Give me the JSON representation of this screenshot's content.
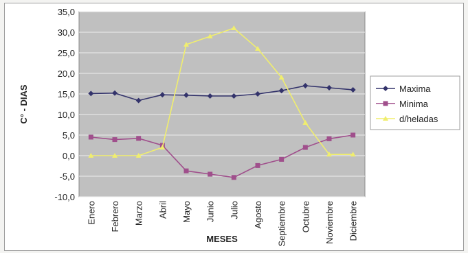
{
  "chart_data": {
    "type": "line",
    "title": "",
    "xlabel": "MESES",
    "ylabel": "C° - DIAS",
    "categories": [
      "Enero",
      "Febrero",
      "Marzo",
      "Abril",
      "Mayo",
      "Junio",
      "Julio",
      "Agosto",
      "Septiembre",
      "Octubre",
      "Noviembre",
      "Diciembre"
    ],
    "ylim": [
      -10,
      35
    ],
    "yticks": [
      "-10,0",
      "-5,0",
      "0,0",
      "5,0",
      "10,0",
      "15,0",
      "20,0",
      "25,0",
      "30,0",
      "35,0"
    ],
    "ytick_values": [
      -10,
      -5,
      0,
      5,
      10,
      15,
      20,
      25,
      30,
      35
    ],
    "grid": true,
    "legend_position": "right",
    "plot_background": "#c0c0c0",
    "series": [
      {
        "name": "Maxima",
        "color": "#33336b",
        "marker": "diamond",
        "values": [
          15.1,
          15.2,
          13.4,
          14.8,
          14.7,
          14.5,
          14.5,
          15.0,
          15.8,
          17.0,
          16.5,
          16.0
        ]
      },
      {
        "name": "Minima",
        "color": "#a04f8c",
        "marker": "square",
        "values": [
          4.5,
          3.9,
          4.2,
          2.5,
          -3.7,
          -4.5,
          -5.3,
          -2.4,
          -0.9,
          2.0,
          4.1,
          5.0
        ]
      },
      {
        "name": "d/heladas",
        "color": "#f0ee6e",
        "marker": "triangle",
        "values": [
          0.0,
          0.0,
          0.0,
          2.0,
          27.0,
          29.0,
          31.0,
          26.0,
          19.0,
          8.0,
          0.3,
          0.3
        ]
      }
    ]
  }
}
